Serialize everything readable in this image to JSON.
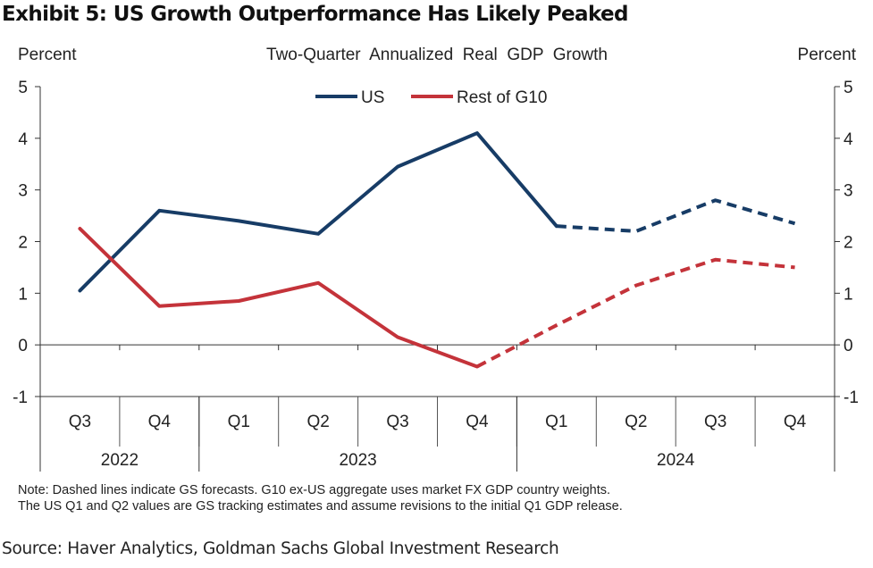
{
  "header": {
    "exhibit_title": "Exhibit 5: US Growth Outperformance Has Likely Peaked"
  },
  "chart_data": {
    "type": "line",
    "subtitle": "Two-Quarter  Annualized  Real  GDP  Growth",
    "ylabel_left": "Percent",
    "ylabel_right": "Percent",
    "ylim": [
      -1,
      5
    ],
    "yticks": [
      -1,
      0,
      1,
      2,
      3,
      4,
      5
    ],
    "categories": [
      "Q3",
      "Q4",
      "Q1",
      "Q2",
      "Q3",
      "Q4",
      "Q1",
      "Q2",
      "Q3",
      "Q4"
    ],
    "year_groups": [
      {
        "label": "2022",
        "count": 2
      },
      {
        "label": "2023",
        "count": 4
      },
      {
        "label": "2024",
        "count": 4
      }
    ],
    "legend_position": "top-center",
    "grid": false,
    "series": [
      {
        "name": "US",
        "color": "#173c66",
        "values": [
          1.05,
          2.6,
          2.4,
          2.15,
          3.45,
          4.1,
          2.3,
          2.2,
          2.8,
          2.35
        ],
        "forecast_start_index": 6
      },
      {
        "name": "Rest of G10",
        "color": "#c4333a",
        "values": [
          2.25,
          0.75,
          0.85,
          1.2,
          0.15,
          -0.42,
          0.38,
          1.15,
          1.65,
          1.5
        ],
        "forecast_start_index": 5
      }
    ]
  },
  "footer": {
    "note_line1": "Note: Dashed lines indicate GS forecasts. G10 ex-US aggregate uses market FX GDP  country weights.",
    "note_line2": "The US Q1 and Q2 values are GS tracking estimates and assume revisions to the initial Q1 GDP release.",
    "source": "Source: Haver Analytics, Goldman Sachs Global Investment Research"
  }
}
